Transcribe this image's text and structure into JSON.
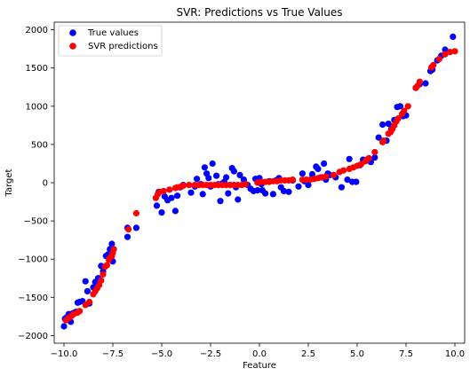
{
  "chart_data": {
    "type": "scatter",
    "title": "SVR: Predictions vs True Values",
    "xlabel": "Feature",
    "ylabel": "Target",
    "xlim": [
      -10.5,
      10.5
    ],
    "ylim": [
      -2100,
      2100
    ],
    "xticks": [
      -10.0,
      -7.5,
      -5.0,
      -2.5,
      0.0,
      2.5,
      5.0,
      7.5,
      10.0
    ],
    "xtick_labels": [
      "−10.0",
      "−7.5",
      "−5.0",
      "−2.5",
      "0.0",
      "2.5",
      "5.0",
      "7.5",
      "10.0"
    ],
    "yticks": [
      -2000,
      -1500,
      -1000,
      -500,
      0,
      500,
      1000,
      1500,
      2000
    ],
    "ytick_labels": [
      "−2000",
      "−1500",
      "−1000",
      "−500",
      "0",
      "500",
      "1000",
      "1500",
      "2000"
    ],
    "grid": false,
    "legend": "top-left",
    "colors": {
      "true": "#0000ff",
      "pred": "#ff0000"
    },
    "series": [
      {
        "name": "True values",
        "color": "#0000ff",
        "points": [
          [
            -10.0,
            -1880
          ],
          [
            -9.95,
            -1780
          ],
          [
            -9.85,
            -1760
          ],
          [
            -9.75,
            -1720
          ],
          [
            -9.65,
            -1820
          ],
          [
            -9.55,
            -1710
          ],
          [
            -9.4,
            -1690
          ],
          [
            -9.3,
            -1570
          ],
          [
            -9.2,
            -1560
          ],
          [
            -9.05,
            -1550
          ],
          [
            -8.9,
            -1290
          ],
          [
            -8.8,
            -1420
          ],
          [
            -8.7,
            -1580
          ],
          [
            -8.5,
            -1370
          ],
          [
            -8.4,
            -1300
          ],
          [
            -8.25,
            -1250
          ],
          [
            -8.1,
            -1090
          ],
          [
            -8.0,
            -1160
          ],
          [
            -7.85,
            -960
          ],
          [
            -7.75,
            -940
          ],
          [
            -7.65,
            -870
          ],
          [
            -7.55,
            -800
          ],
          [
            -7.5,
            -1030
          ],
          [
            -6.75,
            -710
          ],
          [
            -6.75,
            -590
          ],
          [
            -6.3,
            -590
          ],
          [
            -5.25,
            -300
          ],
          [
            -5.15,
            -120
          ],
          [
            -5.0,
            -390
          ],
          [
            -4.85,
            -180
          ],
          [
            -4.7,
            -230
          ],
          [
            -4.5,
            -200
          ],
          [
            -4.3,
            -370
          ],
          [
            -4.2,
            -170
          ],
          [
            -4.05,
            -60
          ],
          [
            -3.9,
            -30
          ],
          [
            -3.5,
            -130
          ],
          [
            -3.3,
            -50
          ],
          [
            -3.2,
            50
          ],
          [
            -3.0,
            -20
          ],
          [
            -2.9,
            -150
          ],
          [
            -2.8,
            200
          ],
          [
            -2.7,
            120
          ],
          [
            -2.6,
            60
          ],
          [
            -2.5,
            -50
          ],
          [
            -2.4,
            250
          ],
          [
            -2.2,
            90
          ],
          [
            -2.1,
            -20
          ],
          [
            -2.0,
            -240
          ],
          [
            -1.9,
            -10
          ],
          [
            -1.8,
            10
          ],
          [
            -1.7,
            70
          ],
          [
            -1.6,
            -140
          ],
          [
            -1.5,
            -30
          ],
          [
            -1.4,
            190
          ],
          [
            -1.3,
            150
          ],
          [
            -1.2,
            -60
          ],
          [
            -1.1,
            -220
          ],
          [
            -1.0,
            100
          ],
          [
            -0.8,
            40
          ],
          [
            -0.6,
            -30
          ],
          [
            -0.45,
            -80
          ],
          [
            -0.3,
            -110
          ],
          [
            -0.2,
            50
          ],
          [
            -0.1,
            -100
          ],
          [
            0.0,
            60
          ],
          [
            0.1,
            -20
          ],
          [
            0.15,
            -100
          ],
          [
            0.3,
            -140
          ],
          [
            0.5,
            20
          ],
          [
            0.7,
            -150
          ],
          [
            0.85,
            30
          ],
          [
            1.0,
            60
          ],
          [
            1.1,
            -60
          ],
          [
            1.25,
            -110
          ],
          [
            1.5,
            -120
          ],
          [
            1.7,
            30
          ],
          [
            2.0,
            -50
          ],
          [
            2.2,
            120
          ],
          [
            2.3,
            20
          ],
          [
            2.5,
            -30
          ],
          [
            2.7,
            110
          ],
          [
            2.8,
            50
          ],
          [
            2.9,
            210
          ],
          [
            3.0,
            180
          ],
          [
            3.15,
            70
          ],
          [
            3.3,
            250
          ],
          [
            3.4,
            40
          ],
          [
            3.5,
            120
          ],
          [
            3.6,
            100
          ],
          [
            3.9,
            70
          ],
          [
            4.2,
            -60
          ],
          [
            4.5,
            40
          ],
          [
            4.6,
            310
          ],
          [
            4.75,
            10
          ],
          [
            4.95,
            10
          ],
          [
            5.15,
            230
          ],
          [
            5.3,
            300
          ],
          [
            5.5,
            290
          ],
          [
            5.7,
            270
          ],
          [
            5.9,
            330
          ],
          [
            6.1,
            590
          ],
          [
            6.3,
            760
          ],
          [
            6.5,
            550
          ],
          [
            6.6,
            770
          ],
          [
            6.75,
            700
          ],
          [
            6.9,
            820
          ],
          [
            7.05,
            990
          ],
          [
            7.2,
            1000
          ],
          [
            7.35,
            870
          ],
          [
            7.5,
            880
          ],
          [
            8.0,
            1240
          ],
          [
            8.2,
            1290
          ],
          [
            8.5,
            1300
          ],
          [
            8.75,
            1460
          ],
          [
            8.85,
            1480
          ],
          [
            9.1,
            1600
          ],
          [
            9.3,
            1660
          ],
          [
            9.5,
            1740
          ],
          [
            9.9,
            1910
          ]
        ]
      },
      {
        "name": "SVR predictions",
        "color": "#ff0000",
        "points": [
          [
            -9.9,
            -1800
          ],
          [
            -9.8,
            -1780
          ],
          [
            -9.7,
            -1760
          ],
          [
            -9.6,
            -1740
          ],
          [
            -9.5,
            -1720
          ],
          [
            -9.3,
            -1700
          ],
          [
            -9.2,
            -1680
          ],
          [
            -8.9,
            -1600
          ],
          [
            -8.7,
            -1560
          ],
          [
            -8.5,
            -1460
          ],
          [
            -8.4,
            -1420
          ],
          [
            -8.3,
            -1380
          ],
          [
            -8.2,
            -1340
          ],
          [
            -8.1,
            -1280
          ],
          [
            -8.0,
            -1200
          ],
          [
            -7.9,
            -1100
          ],
          [
            -7.8,
            -1080
          ],
          [
            -7.7,
            -1010
          ],
          [
            -7.65,
            -980
          ],
          [
            -7.55,
            -960
          ],
          [
            -7.5,
            -920
          ],
          [
            -7.45,
            -870
          ],
          [
            -6.7,
            -610
          ],
          [
            -6.3,
            -400
          ],
          [
            -5.3,
            -200
          ],
          [
            -5.2,
            -150
          ],
          [
            -5.1,
            -120
          ],
          [
            -4.9,
            -110
          ],
          [
            -4.6,
            -90
          ],
          [
            -4.3,
            -70
          ],
          [
            -4.2,
            -60
          ],
          [
            -4.0,
            -50
          ],
          [
            -3.9,
            -40
          ],
          [
            -3.6,
            -30
          ],
          [
            -3.3,
            -30
          ],
          [
            -3.1,
            -30
          ],
          [
            -2.9,
            -30
          ],
          [
            -2.7,
            -30
          ],
          [
            -2.5,
            -30
          ],
          [
            -2.3,
            -30
          ],
          [
            -2.1,
            -30
          ],
          [
            -1.9,
            -30
          ],
          [
            -1.7,
            -30
          ],
          [
            -1.5,
            -30
          ],
          [
            -1.3,
            -30
          ],
          [
            -1.1,
            -30
          ],
          [
            -0.9,
            -30
          ],
          [
            -0.7,
            -20
          ],
          [
            -0.1,
            0
          ],
          [
            0.1,
            10
          ],
          [
            0.3,
            10
          ],
          [
            0.5,
            10
          ],
          [
            0.7,
            20
          ],
          [
            0.9,
            20
          ],
          [
            1.1,
            30
          ],
          [
            1.3,
            30
          ],
          [
            1.5,
            30
          ],
          [
            1.7,
            40
          ],
          [
            2.2,
            40
          ],
          [
            2.4,
            40
          ],
          [
            2.6,
            40
          ],
          [
            2.8,
            50
          ],
          [
            3.0,
            60
          ],
          [
            3.2,
            70
          ],
          [
            3.4,
            80
          ],
          [
            3.8,
            100
          ],
          [
            4.1,
            140
          ],
          [
            4.3,
            160
          ],
          [
            4.6,
            180
          ],
          [
            4.8,
            200
          ],
          [
            5.0,
            220
          ],
          [
            5.2,
            240
          ],
          [
            5.4,
            280
          ],
          [
            5.5,
            300
          ],
          [
            5.6,
            320
          ],
          [
            5.9,
            400
          ],
          [
            6.3,
            530
          ],
          [
            6.35,
            550
          ],
          [
            6.6,
            640
          ],
          [
            6.7,
            660
          ],
          [
            6.8,
            700
          ],
          [
            6.9,
            750
          ],
          [
            7.0,
            800
          ],
          [
            7.1,
            840
          ],
          [
            7.3,
            900
          ],
          [
            7.4,
            940
          ],
          [
            7.6,
            1000
          ],
          [
            8.0,
            1240
          ],
          [
            8.1,
            1270
          ],
          [
            8.2,
            1320
          ],
          [
            8.8,
            1510
          ],
          [
            8.9,
            1540
          ],
          [
            9.2,
            1620
          ],
          [
            9.5,
            1680
          ],
          [
            9.75,
            1710
          ],
          [
            10.0,
            1720
          ]
        ]
      }
    ]
  }
}
